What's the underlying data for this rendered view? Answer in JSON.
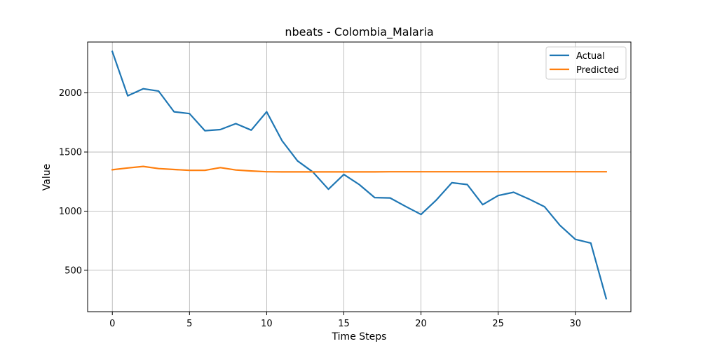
{
  "chart_data": {
    "type": "line",
    "title": "nbeats - Colombia_Malaria",
    "xlabel": "Time Steps",
    "ylabel": "Value",
    "xlim": [
      -1.6,
      33.6
    ],
    "ylim": [
      150,
      2430
    ],
    "xticks": [
      0,
      5,
      10,
      15,
      20,
      25,
      30
    ],
    "yticks": [
      500,
      1000,
      1500,
      2000
    ],
    "grid": true,
    "legend_position": "top-right",
    "x": [
      0,
      1,
      2,
      3,
      4,
      5,
      6,
      7,
      8,
      9,
      10,
      11,
      12,
      13,
      14,
      15,
      16,
      17,
      18,
      19,
      20,
      21,
      22,
      23,
      24,
      25,
      26,
      27,
      28,
      29,
      30,
      31,
      32
    ],
    "series": [
      {
        "name": "Actual",
        "color": "#1f77b4",
        "values": [
          2350,
          1975,
          2035,
          2015,
          1840,
          1825,
          1680,
          1690,
          1740,
          1685,
          1840,
          1595,
          1425,
          1330,
          1185,
          1310,
          1225,
          1115,
          1112,
          1040,
          972,
          1095,
          1240,
          1225,
          1055,
          1132,
          1160,
          1102,
          1038,
          880,
          762,
          730,
          260
        ]
      },
      {
        "name": "Predicted",
        "color": "#ff7f0e",
        "values": [
          1350,
          1365,
          1378,
          1360,
          1352,
          1345,
          1345,
          1368,
          1348,
          1340,
          1333,
          1332,
          1332,
          1332,
          1332,
          1332,
          1332,
          1332,
          1333,
          1333,
          1333,
          1333,
          1333,
          1333,
          1333,
          1333,
          1333,
          1333,
          1333,
          1333,
          1333,
          1333,
          1333
        ]
      }
    ]
  }
}
